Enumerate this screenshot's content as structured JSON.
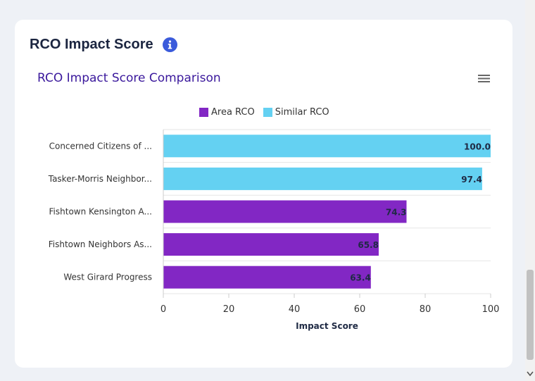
{
  "card": {
    "title": "RCO Impact Score",
    "info_icon": "info-icon"
  },
  "colors": {
    "area": "#8227c4",
    "similar": "#64d1f2",
    "title": "#3a189c"
  },
  "chart_data": {
    "type": "bar",
    "orientation": "horizontal",
    "title": "RCO Impact Score Comparison",
    "xlabel": "Impact Score",
    "ylabel": "",
    "xlim": [
      0,
      100
    ],
    "xticks": [
      "0",
      "20",
      "40",
      "60",
      "80",
      "100"
    ],
    "legend": [
      {
        "name": "Area RCO",
        "color": "#8227c4"
      },
      {
        "name": "Similar RCO",
        "color": "#64d1f2"
      }
    ],
    "categories": [
      "Concerned Citizens of ...",
      "Tasker-Morris Neighbor...",
      "Fishtown Kensington A...",
      "Fishtown Neighbors As...",
      "West Girard Progress"
    ],
    "values": [
      100.0,
      97.4,
      74.3,
      65.8,
      63.4
    ],
    "value_labels": [
      "100.0",
      "97.4",
      "74.3",
      "65.8",
      "63.4"
    ],
    "series_of_bar": [
      "Similar RCO",
      "Similar RCO",
      "Area RCO",
      "Area RCO",
      "Area RCO"
    ]
  }
}
